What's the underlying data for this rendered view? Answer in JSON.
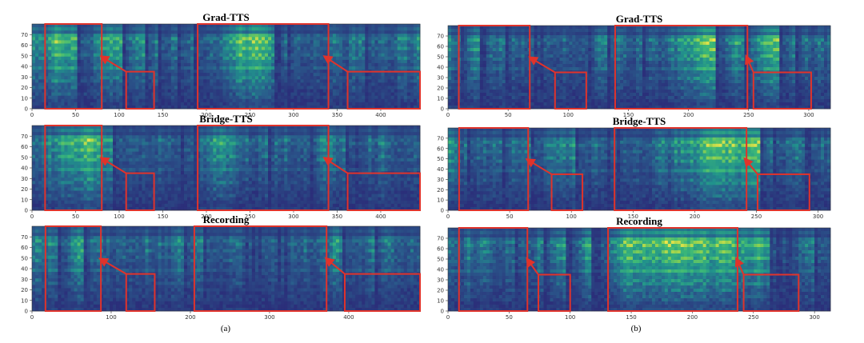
{
  "figure": {
    "caption_a": "(a)",
    "caption_b": "(b)"
  },
  "colors": {
    "highlight": "#e0332b",
    "spectrogram_low": "#2b2f7a",
    "spectrogram_high": "#f0e44a"
  },
  "chart_data": [
    {
      "type": "heatmap",
      "panel": "a",
      "title": "Grad-TTS",
      "x_ticks": [
        0,
        50,
        100,
        150,
        200,
        250,
        300,
        350,
        400
      ],
      "y_ticks": [
        0,
        10,
        20,
        30,
        40,
        50,
        60,
        70
      ],
      "xlim": [
        0,
        445
      ],
      "ylim": [
        0,
        80
      ],
      "highlight_boxes": [
        {
          "x": [
            15,
            80
          ],
          "y": [
            0,
            80
          ]
        },
        {
          "x": [
            108,
            140
          ],
          "y": [
            0,
            35
          ]
        },
        {
          "x": [
            190,
            340
          ],
          "y": [
            0,
            80
          ]
        },
        {
          "x": [
            362,
            445
          ],
          "y": [
            0,
            35
          ]
        }
      ],
      "arrows": [
        {
          "from": [
            108,
            35
          ],
          "to": [
            82,
            48
          ]
        },
        {
          "from": [
            362,
            35
          ],
          "to": [
            338,
            48
          ]
        }
      ]
    },
    {
      "type": "heatmap",
      "panel": "a",
      "title": "Bridge-TTS",
      "x_ticks": [
        0,
        50,
        100,
        150,
        200,
        250,
        300,
        350,
        400
      ],
      "y_ticks": [
        0,
        10,
        20,
        30,
        40,
        50,
        60,
        70
      ],
      "xlim": [
        0,
        445
      ],
      "ylim": [
        0,
        80
      ],
      "highlight_boxes": [
        {
          "x": [
            15,
            80
          ],
          "y": [
            0,
            80
          ]
        },
        {
          "x": [
            108,
            140
          ],
          "y": [
            0,
            35
          ]
        },
        {
          "x": [
            190,
            340
          ],
          "y": [
            0,
            80
          ]
        },
        {
          "x": [
            362,
            445
          ],
          "y": [
            0,
            35
          ]
        }
      ],
      "arrows": [
        {
          "from": [
            108,
            35
          ],
          "to": [
            82,
            48
          ]
        },
        {
          "from": [
            362,
            35
          ],
          "to": [
            338,
            48
          ]
        }
      ]
    },
    {
      "type": "heatmap",
      "panel": "a",
      "title": "Recording",
      "x_ticks": [
        0,
        100,
        200,
        300,
        400
      ],
      "y_ticks": [
        0,
        10,
        20,
        30,
        40,
        50,
        60,
        70
      ],
      "xlim": [
        0,
        490
      ],
      "ylim": [
        0,
        80
      ],
      "highlight_boxes": [
        {
          "x": [
            17,
            87
          ],
          "y": [
            0,
            80
          ]
        },
        {
          "x": [
            119,
            155
          ],
          "y": [
            0,
            35
          ]
        },
        {
          "x": [
            205,
            372
          ],
          "y": [
            0,
            80
          ]
        },
        {
          "x": [
            395,
            490
          ],
          "y": [
            0,
            35
          ]
        }
      ],
      "arrows": [
        {
          "from": [
            119,
            35
          ],
          "to": [
            89,
            48
          ]
        },
        {
          "from": [
            395,
            35
          ],
          "to": [
            374,
            48
          ]
        }
      ]
    },
    {
      "type": "heatmap",
      "panel": "b",
      "title": "Grad-TTS",
      "x_ticks": [
        0,
        50,
        100,
        150,
        200,
        250,
        300
      ],
      "y_ticks": [
        0,
        10,
        20,
        30,
        40,
        50,
        60,
        70
      ],
      "xlim": [
        0,
        318
      ],
      "ylim": [
        0,
        80
      ],
      "highlight_boxes": [
        {
          "x": [
            9,
            68
          ],
          "y": [
            0,
            80
          ]
        },
        {
          "x": [
            89,
            115
          ],
          "y": [
            0,
            35
          ]
        },
        {
          "x": [
            139,
            249
          ],
          "y": [
            0,
            80
          ]
        },
        {
          "x": [
            254,
            302
          ],
          "y": [
            0,
            35
          ]
        }
      ],
      "arrows": [
        {
          "from": [
            89,
            35
          ],
          "to": [
            70,
            48
          ]
        },
        {
          "from": [
            254,
            35
          ],
          "to": [
            249,
            48
          ]
        }
      ]
    },
    {
      "type": "heatmap",
      "panel": "b",
      "title": "Bridge-TTS",
      "x_ticks": [
        0,
        50,
        100,
        150,
        200,
        250,
        300
      ],
      "y_ticks": [
        0,
        10,
        20,
        30,
        40,
        50,
        60,
        70
      ],
      "xlim": [
        0,
        310
      ],
      "ylim": [
        0,
        80
      ],
      "highlight_boxes": [
        {
          "x": [
            9,
            65
          ],
          "y": [
            0,
            80
          ]
        },
        {
          "x": [
            84,
            109
          ],
          "y": [
            0,
            35
          ]
        },
        {
          "x": [
            135,
            242
          ],
          "y": [
            0,
            80
          ]
        },
        {
          "x": [
            251,
            293
          ],
          "y": [
            0,
            35
          ]
        }
      ],
      "arrows": [
        {
          "from": [
            84,
            35
          ],
          "to": [
            66,
            48
          ]
        },
        {
          "from": [
            251,
            35
          ],
          "to": [
            242,
            48
          ]
        }
      ]
    },
    {
      "type": "heatmap",
      "panel": "b",
      "title": "Recording",
      "x_ticks": [
        0,
        50,
        100,
        150,
        200,
        250,
        300
      ],
      "y_ticks": [
        0,
        10,
        20,
        30,
        40,
        50,
        60,
        70
      ],
      "xlim": [
        0,
        313
      ],
      "ylim": [
        0,
        80
      ],
      "highlight_boxes": [
        {
          "x": [
            9,
            65
          ],
          "y": [
            0,
            80
          ]
        },
        {
          "x": [
            74,
            100
          ],
          "y": [
            0,
            35
          ]
        },
        {
          "x": [
            131,
            237
          ],
          "y": [
            0,
            80
          ]
        },
        {
          "x": [
            242,
            287
          ],
          "y": [
            0,
            35
          ]
        }
      ],
      "arrows": [
        {
          "from": [
            74,
            35
          ],
          "to": [
            66,
            48
          ]
        },
        {
          "from": [
            242,
            35
          ],
          "to": [
            237,
            48
          ]
        }
      ]
    }
  ]
}
